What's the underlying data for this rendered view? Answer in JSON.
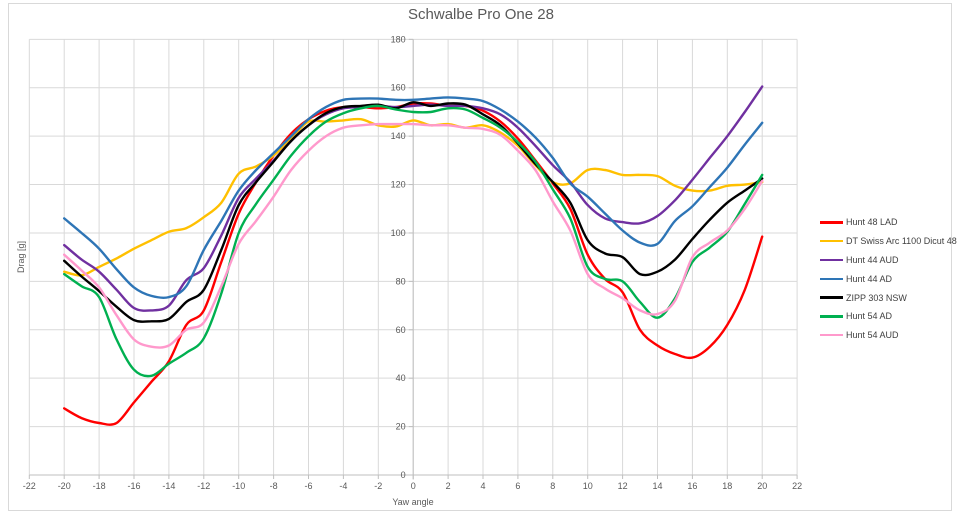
{
  "window": {
    "background": "#FFFFFF",
    "border_color": "#D9D9D9",
    "gridline_color": "#D9D9D9",
    "axis_color": "#BFBFBF",
    "text_color": "#595959"
  },
  "chart_data": {
    "type": "line",
    "title": "Schwalbe Pro One 28",
    "xlabel": "Yaw angle",
    "ylabel": "Drag [g]",
    "xlim": [
      -22,
      22
    ],
    "ylim": [
      0,
      180
    ],
    "x_ticks": [
      -22,
      -20,
      -18,
      -16,
      -14,
      -12,
      -10,
      -8,
      -6,
      -4,
      -2,
      0,
      2,
      4,
      6,
      8,
      10,
      12,
      14,
      16,
      18,
      20,
      22
    ],
    "y_ticks": [
      0,
      20,
      40,
      60,
      80,
      100,
      120,
      140,
      160,
      180
    ],
    "grid": true,
    "legend_position": "right",
    "x": [
      -20,
      -19,
      -18,
      -17,
      -16,
      -15,
      -14,
      -13,
      -12,
      -11,
      -10,
      -9,
      -8,
      -7,
      -6,
      -5,
      -4,
      -3,
      -2,
      -1,
      0,
      1,
      2,
      3,
      4,
      5,
      6,
      7,
      8,
      9,
      10,
      11,
      12,
      13,
      14,
      15,
      16,
      17,
      18,
      19,
      20
    ],
    "series": [
      {
        "name": "Hunt 48 LAD",
        "color": "#FF0000",
        "values": [
          27.5,
          23.5,
          21.5,
          21.5,
          30,
          38.5,
          47,
          62,
          68,
          88,
          108,
          121,
          132,
          141,
          147,
          150.5,
          152,
          152,
          151.5,
          152,
          153.5,
          153.5,
          152.5,
          152.5,
          150.5,
          146,
          139,
          130,
          120.5,
          110,
          91,
          81,
          75.5,
          60,
          53.5,
          50,
          48.5,
          53,
          62,
          76.5,
          98.5
        ]
      },
      {
        "name": "DT Swiss Arc 1100 Dicut 48",
        "color": "#FFC000",
        "values": [
          84,
          82.5,
          86,
          89.5,
          93.5,
          97,
          100.5,
          102,
          106.5,
          112.5,
          124.5,
          127.5,
          132,
          139,
          146,
          146,
          146.5,
          147,
          144.5,
          144,
          146.5,
          144.5,
          145,
          143.5,
          144.5,
          141.5,
          136,
          128,
          121,
          120.5,
          126,
          126,
          124,
          124,
          123.5,
          119.5,
          117.5,
          117.5,
          119.5,
          120,
          121
        ]
      },
      {
        "name": "Hunt 44 AUD",
        "color": "#7030A0",
        "values": [
          95,
          89,
          84,
          76.5,
          69,
          68,
          70,
          80.5,
          85.5,
          99,
          114.5,
          122.5,
          130,
          138,
          144.5,
          149,
          151.5,
          152,
          152.5,
          152,
          152.5,
          153,
          152.5,
          152.5,
          151.5,
          149,
          143.5,
          136,
          128,
          121,
          111.5,
          106,
          104.5,
          104,
          107,
          113.5,
          122,
          131,
          140,
          150,
          160.5
        ]
      },
      {
        "name": "Hunt 44 AD",
        "color": "#2E75B6",
        "values": [
          106,
          100,
          93.5,
          85,
          77.5,
          74,
          73.5,
          78,
          93,
          105,
          117.5,
          126,
          133,
          140,
          147,
          152,
          155,
          155.5,
          155.5,
          155,
          155,
          155.5,
          156,
          155.5,
          154.5,
          151,
          146,
          139.5,
          131,
          120.5,
          115,
          108,
          101,
          96,
          95.5,
          105,
          111,
          119,
          127,
          136.5,
          145.5
        ]
      },
      {
        "name": "ZIPP 303 NSW",
        "color": "#000000",
        "values": [
          88.5,
          82,
          76,
          69.5,
          64,
          63.5,
          64.5,
          71.5,
          76.5,
          93,
          111.5,
          121,
          129.5,
          138,
          144.5,
          149.5,
          152,
          152.5,
          153,
          151.5,
          154,
          152.5,
          153.5,
          153,
          149,
          144.5,
          137,
          128.5,
          121,
          112.5,
          97,
          91.5,
          90,
          83,
          84,
          89,
          97.5,
          105.5,
          112.5,
          117.5,
          122.5
        ]
      },
      {
        "name": "Hunt 54 AD",
        "color": "#00B050",
        "values": [
          83,
          78,
          73.5,
          56,
          43.5,
          41,
          46,
          50.5,
          56.5,
          75,
          100,
          112,
          122,
          132,
          140,
          146,
          149.5,
          151.5,
          152.5,
          151,
          150,
          150,
          151.5,
          151,
          147.5,
          143.5,
          137.5,
          129.5,
          118,
          106,
          86,
          81,
          80,
          71.5,
          65,
          73,
          88,
          94,
          100.5,
          112,
          124
        ]
      },
      {
        "name": "Hunt 54 AUD",
        "color": "#FF99CC",
        "values": [
          91,
          84.5,
          77.5,
          66,
          56,
          53,
          53.5,
          60,
          63,
          78,
          95.5,
          105,
          115,
          126,
          134,
          140,
          143.5,
          144.5,
          145,
          145,
          145,
          144.5,
          144.5,
          143.5,
          143,
          140.5,
          134,
          126,
          113,
          101,
          83,
          77,
          73,
          68,
          66.5,
          72,
          90,
          96,
          101,
          110,
          121.5
        ]
      }
    ]
  }
}
